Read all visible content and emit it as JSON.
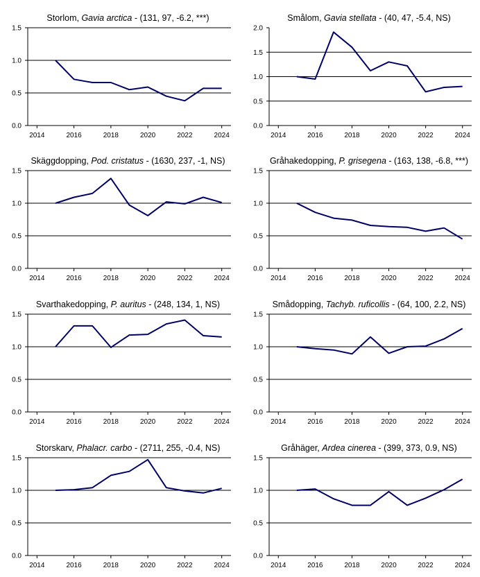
{
  "chart_data": [
    {
      "type": "line",
      "title_common": "Storlom",
      "title_latin": "Gavia arctica",
      "title_stats": " - (131, 97, -6.2, ***)",
      "x": [
        2015,
        2016,
        2017,
        2018,
        2019,
        2020,
        2021,
        2022,
        2023,
        2024
      ],
      "values": [
        1.0,
        0.71,
        0.66,
        0.66,
        0.55,
        0.59,
        0.45,
        0.38,
        0.57,
        0.57
      ],
      "xticks": [
        "2014",
        "2016",
        "2018",
        "2020",
        "2022",
        "2024"
      ],
      "yticks": [
        "0.0",
        "0.5",
        "1.0",
        "1.5"
      ],
      "ylim": [
        0,
        1.5
      ],
      "xlim": [
        2013.5,
        2024.5
      ],
      "hlines": [
        0.5,
        1.0,
        1.5
      ],
      "line_color": "#000066"
    },
    {
      "type": "line",
      "title_common": "Smålom",
      "title_latin": "Gavia stellata",
      "title_stats": " - (40, 47, -5.4, NS)",
      "x": [
        2015,
        2016,
        2017,
        2018,
        2019,
        2020,
        2021,
        2022,
        2023,
        2024
      ],
      "values": [
        1.0,
        0.95,
        1.91,
        1.6,
        1.12,
        1.3,
        1.22,
        0.69,
        0.78,
        0.8
      ],
      "xticks": [
        "2014",
        "2016",
        "2018",
        "2020",
        "2022",
        "2024"
      ],
      "yticks": [
        "0.0",
        "0.5",
        "1.0",
        "1.5",
        "2.0"
      ],
      "ylim": [
        0,
        2.0
      ],
      "xlim": [
        2013.5,
        2024.5
      ],
      "hlines": [
        0.5,
        1.0,
        1.5
      ],
      "line_color": "#000066"
    },
    {
      "type": "line",
      "title_common": "Skäggdopping",
      "title_latin": "Pod. cristatus",
      "title_stats": " - (1630, 237, -1, NS)",
      "x": [
        2015,
        2016,
        2017,
        2018,
        2019,
        2020,
        2021,
        2022,
        2023,
        2024
      ],
      "values": [
        1.0,
        1.09,
        1.15,
        1.38,
        0.97,
        0.81,
        1.02,
        0.99,
        1.09,
        1.01
      ],
      "xticks": [
        "2014",
        "2016",
        "2018",
        "2020",
        "2022",
        "2024"
      ],
      "yticks": [
        "0.0",
        "0.5",
        "1.0",
        "1.5"
      ],
      "ylim": [
        0,
        1.5
      ],
      "xlim": [
        2013.5,
        2024.5
      ],
      "hlines": [
        0.5,
        1.0,
        1.5
      ],
      "line_color": "#000066"
    },
    {
      "type": "line",
      "title_common": "Gråhakedopping",
      "title_latin": "P. grisegena",
      "title_stats": " - (163, 138, -6.8, ***)",
      "x": [
        2015,
        2016,
        2017,
        2018,
        2019,
        2020,
        2021,
        2022,
        2023,
        2024
      ],
      "values": [
        1.0,
        0.86,
        0.77,
        0.74,
        0.66,
        0.64,
        0.63,
        0.57,
        0.62,
        0.45
      ],
      "xticks": [
        "2014",
        "2016",
        "2018",
        "2020",
        "2022",
        "2024"
      ],
      "yticks": [
        "0.0",
        "0.5",
        "1.0",
        "1.5"
      ],
      "ylim": [
        0,
        1.5
      ],
      "xlim": [
        2013.5,
        2024.5
      ],
      "hlines": [
        0.5,
        1.0,
        1.5
      ],
      "line_color": "#000066"
    },
    {
      "type": "line",
      "title_common": "Svarthakedopping",
      "title_latin": "P. auritus",
      "title_stats": " - (248, 134, 1, NS)",
      "x": [
        2015,
        2016,
        2017,
        2018,
        2019,
        2020,
        2021,
        2022,
        2023,
        2024
      ],
      "values": [
        1.0,
        1.32,
        1.32,
        0.99,
        1.18,
        1.19,
        1.35,
        1.41,
        1.17,
        1.15
      ],
      "xticks": [
        "2014",
        "2016",
        "2018",
        "2020",
        "2022",
        "2024"
      ],
      "yticks": [
        "0.0",
        "0.5",
        "1.0",
        "1.5"
      ],
      "ylim": [
        0,
        1.5
      ],
      "xlim": [
        2013.5,
        2024.5
      ],
      "hlines": [
        0.5,
        1.0,
        1.5
      ],
      "line_color": "#000066"
    },
    {
      "type": "line",
      "title_common": "Smådopping",
      "title_latin": "Tachyb. ruficollis",
      "title_stats": " - (64, 100, 2.2, NS)",
      "x": [
        2015,
        2016,
        2017,
        2018,
        2019,
        2020,
        2021,
        2022,
        2023,
        2024
      ],
      "values": [
        1.0,
        0.97,
        0.95,
        0.89,
        1.15,
        0.9,
        1.0,
        1.01,
        1.12,
        1.28
      ],
      "xticks": [
        "2014",
        "2016",
        "2018",
        "2020",
        "2022",
        "2024"
      ],
      "yticks": [
        "0.0",
        "0.5",
        "1.0",
        "1.5"
      ],
      "ylim": [
        0,
        1.5
      ],
      "xlim": [
        2013.5,
        2024.5
      ],
      "hlines": [
        0.5,
        1.0,
        1.5
      ],
      "line_color": "#000066"
    },
    {
      "type": "line",
      "title_common": "Storskarv",
      "title_latin": "Phalacr. carbo",
      "title_stats": " - (2711, 255, -0.4, NS)",
      "x": [
        2015,
        2016,
        2017,
        2018,
        2019,
        2020,
        2021,
        2022,
        2023,
        2024
      ],
      "values": [
        1.0,
        1.01,
        1.04,
        1.23,
        1.29,
        1.47,
        1.04,
        0.99,
        0.96,
        1.03
      ],
      "xticks": [
        "2014",
        "2016",
        "2018",
        "2020",
        "2022",
        "2024"
      ],
      "yticks": [
        "0.0",
        "0.5",
        "1.0",
        "1.5"
      ],
      "ylim": [
        0,
        1.5
      ],
      "xlim": [
        2013.5,
        2024.5
      ],
      "hlines": [
        0.5,
        1.0,
        1.5
      ],
      "line_color": "#000066"
    },
    {
      "type": "line",
      "title_common": "Gråhäger",
      "title_latin": "Ardea cinerea",
      "title_stats": " - (399, 373, 0.9, NS)",
      "x": [
        2015,
        2016,
        2017,
        2018,
        2019,
        2020,
        2021,
        2022,
        2023,
        2024
      ],
      "values": [
        1.0,
        1.02,
        0.87,
        0.77,
        0.77,
        0.98,
        0.77,
        0.88,
        1.01,
        1.17
      ],
      "xticks": [
        "2014",
        "2016",
        "2018",
        "2020",
        "2022",
        "2024"
      ],
      "yticks": [
        "0.0",
        "0.5",
        "1.0",
        "1.5"
      ],
      "ylim": [
        0,
        1.5
      ],
      "xlim": [
        2013.5,
        2024.5
      ],
      "hlines": [
        0.5,
        1.0,
        1.5
      ],
      "line_color": "#000066"
    }
  ]
}
